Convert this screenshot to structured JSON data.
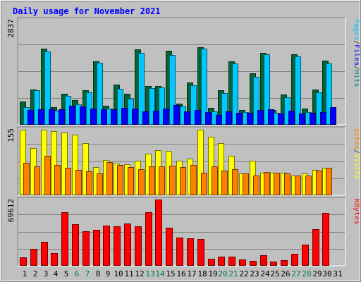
{
  "chart_data": {
    "type": "bar",
    "title": "Daily usage for November 2021",
    "x": [
      "1",
      "2",
      "3",
      "4",
      "5",
      "6",
      "7",
      "8",
      "9",
      "10",
      "11",
      "12",
      "13",
      "14",
      "15",
      "16",
      "17",
      "18",
      "19",
      "20",
      "21",
      "22",
      "23",
      "24",
      "25",
      "26",
      "27",
      "28",
      "29",
      "30",
      "31"
    ],
    "weekend_days": [
      "6",
      "7",
      "13",
      "14",
      "20",
      "21",
      "27",
      "28"
    ],
    "panels": [
      {
        "id": "hits_files",
        "ylim": [
          0,
          2837
        ],
        "y_max_label": "2837",
        "ylabel_parts": [
          {
            "text": "Pages",
            "color": "#00c8ff"
          },
          {
            "text": "/",
            "color": "#404040"
          },
          {
            "text": "Files",
            "color": "#0000ff"
          },
          {
            "text": "/",
            "color": "#404040"
          },
          {
            "text": "Hits",
            "color": "#008080"
          }
        ],
        "series": [
          {
            "name": "Hits",
            "color": "#006633",
            "values": [
              640,
              950,
              2070,
              470,
              850,
              680,
              930,
              1730,
              520,
              1100,
              850,
              2050,
              1050,
              1060,
              2010,
              580,
              1150,
              2100,
              460,
              940,
              1720,
              410,
              1390,
              1960,
              400,
              820,
              1920,
              450,
              950,
              1750,
              0
            ]
          },
          {
            "name": "Files",
            "color": "#00c8ff",
            "values": [
              480,
              930,
              1990,
              380,
              790,
              560,
              880,
              1680,
              440,
              980,
              700,
              1950,
              990,
              1020,
              1890,
              500,
              1080,
              2070,
              360,
              860,
              1670,
              350,
              1310,
              1910,
              330,
              740,
              1860,
              350,
              880,
              1670,
              0
            ]
          },
          {
            "name": "Pages",
            "color": "#0000ff",
            "values": [
              400,
              420,
              430,
              420,
              510,
              500,
              440,
              430,
              420,
              460,
              440,
              370,
              390,
              450,
              540,
              370,
              400,
              340,
              270,
              360,
              330,
              320,
              410,
              420,
              300,
              390,
              310,
              320,
              350,
              480,
              0
            ]
          }
        ]
      },
      {
        "id": "visits_sites",
        "ylim": [
          0,
          155
        ],
        "y_max_label": "155",
        "ylabel_parts": [
          {
            "text": "Sites",
            "color": "#ff8000"
          },
          {
            "text": "/",
            "color": "#404040"
          },
          {
            "text": "Visits",
            "color": "#ffff00"
          }
        ],
        "series": [
          {
            "name": "Visits",
            "color": "#ffff00",
            "values": [
              155,
              111,
              155,
              151,
              148,
              143,
              124,
              67,
              83,
              75,
              73,
              81,
              99,
              106,
              105,
              82,
              86,
              155,
              138,
              124,
              93,
              52,
              81,
              54,
              54,
              53,
              46,
              51,
              60,
              65,
              0
            ]
          },
          {
            "name": "Sites",
            "color": "#ff8000",
            "values": [
              77,
              68,
              94,
              72,
              65,
              60,
              56,
              52,
              78,
              71,
              66,
              62,
              69,
              69,
              70,
              67,
              72,
              54,
              68,
              59,
              61,
              51,
              47,
              55,
              54,
              52,
              46,
              46,
              59,
              65,
              0
            ]
          }
        ]
      },
      {
        "id": "kbytes",
        "ylim": [
          0,
          69612
        ],
        "y_max_label": "69612",
        "ylabel_parts": [
          {
            "text": "KBytes",
            "color": "#ff0000"
          }
        ],
        "series": [
          {
            "name": "KBytes",
            "color": "#ff0000",
            "values": [
              8900,
              17800,
              25200,
              13100,
              57000,
              44000,
              36800,
              38000,
              42800,
              41800,
              44600,
              42100,
              57000,
              70000,
              40100,
              29700,
              29200,
              28200,
              7200,
              9800,
              10100,
              6600,
              5400,
              11300,
              4400,
              5800,
              12700,
              22800,
              38900,
              56500,
              0
            ]
          }
        ]
      }
    ]
  }
}
